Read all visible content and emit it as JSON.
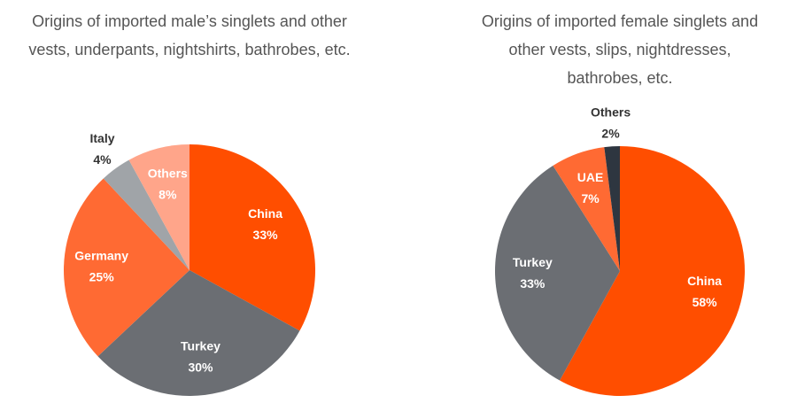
{
  "chart_data": [
    {
      "type": "pie",
      "title": "Origins of imported male’s singlets and other vests, underpants, nightshirts, bathrobes, etc.",
      "categories": [
        "China",
        "Turkey",
        "Germany",
        "Italy",
        "Others"
      ],
      "values": [
        33,
        30,
        25,
        4,
        8
      ],
      "value_labels": [
        "33%",
        "30%",
        "25%",
        "4%",
        "8%"
      ],
      "colors": [
        "#ff4e00",
        "#6b6e73",
        "#ff6a33",
        "#a0a4a8",
        "#ffa58a"
      ]
    },
    {
      "type": "pie",
      "title": "Origins of imported female singlets and other vests, slips, nightdresses, bathrobes, etc.",
      "categories": [
        "China",
        "Turkey",
        "UAE",
        "Others"
      ],
      "values": [
        58,
        33,
        7,
        2
      ],
      "value_labels": [
        "58%",
        "33%",
        "7%",
        "2%"
      ],
      "colors": [
        "#ff4e00",
        "#6b6e73",
        "#ff6a33",
        "#2e3640"
      ]
    }
  ]
}
